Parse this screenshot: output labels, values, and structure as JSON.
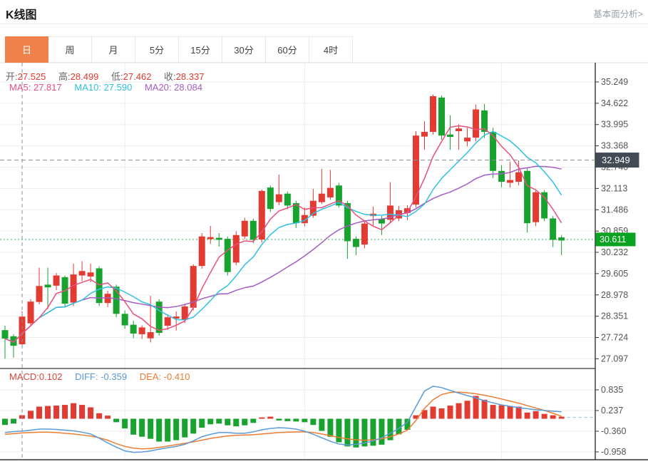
{
  "header": {
    "title": "K线图",
    "link": "基本面分析>"
  },
  "tabs": {
    "active": "day",
    "items": [
      {
        "id": "day",
        "label": "日"
      },
      {
        "id": "week",
        "label": "周"
      },
      {
        "id": "month",
        "label": "月"
      },
      {
        "id": "min5",
        "label": "5分"
      },
      {
        "id": "min15",
        "label": "15分"
      },
      {
        "id": "min30",
        "label": "30分"
      },
      {
        "id": "min60",
        "label": "60分"
      },
      {
        "id": "hour4",
        "label": "4时"
      }
    ]
  },
  "readout": {
    "open_label": "开:",
    "open": "27.525",
    "high_label": "高:",
    "high": "28.499",
    "low_label": "低:",
    "low": "27.462",
    "close_label": "收:",
    "close": "28.337",
    "ma5_label": "MA5:",
    "ma5": "27.817",
    "ma10_label": "MA10:",
    "ma10": "27.590",
    "ma20_label": "MA20:",
    "ma20": "28.084",
    "macd_label": "MACD:",
    "macd": "0.102",
    "diff_label": "DIFF:",
    "diff": "-0.359",
    "dea_label": "DEA:",
    "dea": "-0.410"
  },
  "colors": {
    "up_red": "#e23b31",
    "down_green": "#17a32e",
    "ma5": "#ea4f7d",
    "ma10": "#2fc2e2",
    "ma20": "#a55cc5",
    "diff_blue": "#5b9bd5",
    "dea_orange": "#ed7d31",
    "tab_active": "#f0814a",
    "badge_dark": "#434a54",
    "badge_green": "#0aa321",
    "grid": "#ededed",
    "axis": "#333333",
    "tick_text": "#555555",
    "dotted_green": "#2eaf4e",
    "crosshair": "#888e94",
    "macd_tail_dash": "#aacdea"
  },
  "chart_data": {
    "type": "candlestick",
    "title": "K线图",
    "legend_position": "none",
    "grid": true,
    "main": {
      "ylim": [
        26.8,
        35.8
      ],
      "y_ticks": [
        35.249,
        34.622,
        33.995,
        33.368,
        32.74,
        32.113,
        31.486,
        30.859,
        30.232,
        29.605,
        28.978,
        28.351,
        27.724,
        27.097
      ],
      "crosshair": {
        "index": 2,
        "price": 32.949,
        "price_label": "32.949"
      },
      "last_price": {
        "value": 30.611,
        "label": "30.611"
      },
      "ma_periods": [
        5,
        10,
        20
      ],
      "candles": [
        [
          27.94,
          28.07,
          27.1,
          27.69
        ],
        [
          27.76,
          27.82,
          27.13,
          27.48
        ],
        [
          27.525,
          28.499,
          27.462,
          28.337
        ],
        [
          28.14,
          28.85,
          28.05,
          28.78
        ],
        [
          28.77,
          29.78,
          28.7,
          29.24
        ],
        [
          29.28,
          29.78,
          28.56,
          29.2
        ],
        [
          29.25,
          29.62,
          29.12,
          29.55
        ],
        [
          29.5,
          29.55,
          28.62,
          28.72
        ],
        [
          28.75,
          29.9,
          28.65,
          29.58
        ],
        [
          29.55,
          29.97,
          29.38,
          29.68
        ],
        [
          29.52,
          29.9,
          29.35,
          29.64
        ],
        [
          29.76,
          29.82,
          28.65,
          28.74
        ],
        [
          28.74,
          29.1,
          28.62,
          29.01
        ],
        [
          29.22,
          29.28,
          28.32,
          28.42
        ],
        [
          28.42,
          28.52,
          27.98,
          28.08
        ],
        [
          28.1,
          28.22,
          27.7,
          27.84
        ],
        [
          27.82,
          28.08,
          27.68,
          28.02
        ],
        [
          27.7,
          28.95,
          27.58,
          27.88
        ],
        [
          28.78,
          28.85,
          27.78,
          27.86
        ],
        [
          28.07,
          28.4,
          27.95,
          28.32
        ],
        [
          28.28,
          28.49,
          27.93,
          28.34
        ],
        [
          28.25,
          28.72,
          28.15,
          28.64
        ],
        [
          28.6,
          29.88,
          28.52,
          29.83
        ],
        [
          29.83,
          30.8,
          29.75,
          30.7
        ],
        [
          30.62,
          31.01,
          30.48,
          30.68
        ],
        [
          30.66,
          30.8,
          30.4,
          30.6
        ],
        [
          30.63,
          30.7,
          29.55,
          29.65
        ],
        [
          29.93,
          30.85,
          29.85,
          30.74
        ],
        [
          30.7,
          31.25,
          30.62,
          31.16
        ],
        [
          31.16,
          31.22,
          30.5,
          30.6
        ],
        [
          30.61,
          32.08,
          30.52,
          32.04
        ],
        [
          32.14,
          32.2,
          31.42,
          31.51
        ],
        [
          31.71,
          32.52,
          31.62,
          31.94
        ],
        [
          31.96,
          32.02,
          31.5,
          31.61
        ],
        [
          31.68,
          31.75,
          30.95,
          31.09
        ],
        [
          31.09,
          31.55,
          31.0,
          31.33
        ],
        [
          31.31,
          32.1,
          31.25,
          31.75
        ],
        [
          31.71,
          32.69,
          31.65,
          31.96
        ],
        [
          31.85,
          32.66,
          31.78,
          32.13
        ],
        [
          32.2,
          32.28,
          31.55,
          31.61
        ],
        [
          31.68,
          31.75,
          30.04,
          30.56
        ],
        [
          30.63,
          30.7,
          30.15,
          30.39
        ],
        [
          30.46,
          31.15,
          30.35,
          31.08
        ],
        [
          31.3,
          31.58,
          31.02,
          31.37
        ],
        [
          31.22,
          31.3,
          30.74,
          31.08
        ],
        [
          31.19,
          32.3,
          31.1,
          31.61
        ],
        [
          31.23,
          31.6,
          31.15,
          31.47
        ],
        [
          31.39,
          31.62,
          31.18,
          31.53
        ],
        [
          31.64,
          33.8,
          31.55,
          33.67
        ],
        [
          33.64,
          34.09,
          33.25,
          33.78
        ],
        [
          33.78,
          34.88,
          33.7,
          34.83
        ],
        [
          34.79,
          34.85,
          33.55,
          33.67
        ],
        [
          33.7,
          34.27,
          33.25,
          33.63
        ],
        [
          33.8,
          34.0,
          33.25,
          33.88
        ],
        [
          33.5,
          33.9,
          33.35,
          33.61
        ],
        [
          33.61,
          34.58,
          33.5,
          34.44
        ],
        [
          34.41,
          34.6,
          33.6,
          33.78
        ],
        [
          33.78,
          33.9,
          32.42,
          32.63
        ],
        [
          32.63,
          32.8,
          32.15,
          32.31
        ],
        [
          32.28,
          32.9,
          32.14,
          32.36
        ],
        [
          32.31,
          32.94,
          32.2,
          32.59
        ],
        [
          32.63,
          32.7,
          30.81,
          31.09
        ],
        [
          31.12,
          32.05,
          31.0,
          32.0
        ],
        [
          32.0,
          32.06,
          31.15,
          31.23
        ],
        [
          31.23,
          31.3,
          30.39,
          30.6
        ],
        [
          30.67,
          30.74,
          30.15,
          30.58
        ]
      ]
    },
    "macd": {
      "ylim": [
        -1.25,
        1.1
      ],
      "y_ticks": [
        0.835,
        0.237,
        -0.36,
        -0.958
      ],
      "bars": [
        -0.18,
        -0.14,
        0.102,
        0.23,
        0.35,
        0.37,
        0.38,
        0.4,
        0.45,
        0.4,
        0.33,
        0.16,
        0.09,
        -0.1,
        -0.28,
        -0.46,
        -0.52,
        -0.58,
        -0.66,
        -0.66,
        -0.62,
        -0.54,
        -0.43,
        -0.26,
        -0.16,
        -0.14,
        -0.19,
        -0.22,
        -0.19,
        -0.12,
        0.04,
        0.06,
        -0.05,
        -0.07,
        -0.08,
        -0.1,
        -0.18,
        -0.35,
        -0.52,
        -0.68,
        -0.8,
        -0.83,
        -0.8,
        -0.78,
        -0.75,
        -0.62,
        -0.45,
        -0.32,
        0.1,
        0.25,
        0.35,
        0.3,
        0.38,
        0.45,
        0.52,
        0.66,
        0.55,
        0.4,
        0.39,
        0.37,
        0.35,
        0.18,
        0.22,
        0.14,
        0.1,
        0.06
      ],
      "diff": [
        -0.4,
        -0.37,
        -0.359,
        -0.33,
        -0.3,
        -0.3,
        -0.31,
        -0.33,
        -0.35,
        -0.39,
        -0.44,
        -0.56,
        -0.7,
        -0.82,
        -0.93,
        -0.97,
        -0.96,
        -0.93,
        -0.88,
        -0.84,
        -0.8,
        -0.74,
        -0.64,
        -0.52,
        -0.45,
        -0.4,
        -0.4,
        -0.42,
        -0.42,
        -0.38,
        -0.32,
        -0.28,
        -0.26,
        -0.27,
        -0.3,
        -0.36,
        -0.45,
        -0.55,
        -0.65,
        -0.73,
        -0.76,
        -0.74,
        -0.7,
        -0.64,
        -0.55,
        -0.42,
        -0.28,
        -0.1,
        0.35,
        0.8,
        0.94,
        0.9,
        0.82,
        0.74,
        0.67,
        0.6,
        0.52,
        0.46,
        0.4,
        0.36,
        0.32,
        0.29,
        0.26,
        0.24,
        0.22,
        0.2
      ],
      "dea": [
        -0.45,
        -0.43,
        -0.41,
        -0.4,
        -0.39,
        -0.39,
        -0.4,
        -0.42,
        -0.44,
        -0.47,
        -0.5,
        -0.55,
        -0.62,
        -0.72,
        -0.8,
        -0.85,
        -0.87,
        -0.86,
        -0.83,
        -0.79,
        -0.75,
        -0.71,
        -0.67,
        -0.62,
        -0.57,
        -0.53,
        -0.5,
        -0.48,
        -0.47,
        -0.46,
        -0.44,
        -0.42,
        -0.4,
        -0.39,
        -0.38,
        -0.38,
        -0.4,
        -0.44,
        -0.49,
        -0.54,
        -0.58,
        -0.61,
        -0.62,
        -0.61,
        -0.58,
        -0.52,
        -0.44,
        -0.33,
        -0.05,
        0.3,
        0.55,
        0.7,
        0.76,
        0.77,
        0.75,
        0.72,
        0.68,
        0.63,
        0.57,
        0.51,
        0.45,
        0.38,
        0.31,
        0.24,
        0.16,
        0.07
      ]
    },
    "x_grid_indices": [
      14,
      35,
      58
    ]
  }
}
